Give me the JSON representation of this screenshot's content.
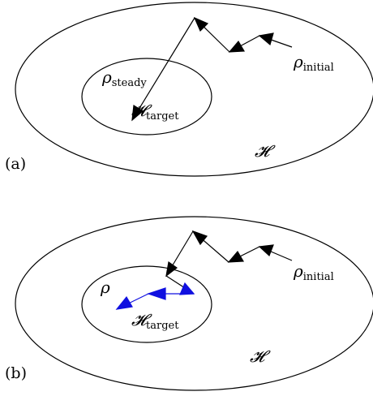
{
  "panel_a": {
    "label": "(a)",
    "outer_set": "𝓗",
    "inner_set": "𝓗",
    "inner_set_sub": "target",
    "start_state": "ρ",
    "start_state_sub": "initial",
    "end_state": "ρ",
    "end_state_sub": "steady"
  },
  "panel_b": {
    "label": "(b)",
    "outer_set": "𝓗",
    "inner_set": "𝓗",
    "inner_set_sub": "target",
    "start_state": "ρ",
    "start_state_sub": "initial",
    "inner_state": "ρ"
  },
  "colors": {
    "line": "#000000",
    "path_arrow": "#000000",
    "inner_arrow": "#1010e0"
  }
}
